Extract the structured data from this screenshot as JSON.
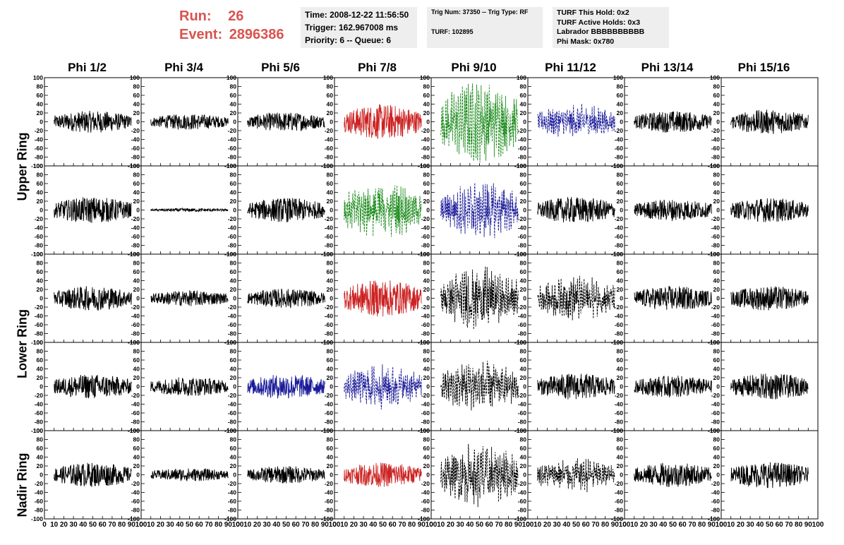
{
  "header": {
    "run_label": "Run:",
    "run_value": "26",
    "event_label": "Event:",
    "event_value": "2896386"
  },
  "info": {
    "time": "Time: 2008-12-22 11:56:50",
    "trigger": "Trigger: 162.967008 ms",
    "priority": "Priority: 6 -- Queue: 6",
    "trig_num": "Trig Num: 37350 -- Trig Type: RF",
    "turf": "TURF: 102895",
    "turf_hold": "TURF This Hold: 0x2",
    "turf_active": "TURF Active Holds: 0x3",
    "labrador": "Labrador BBBBBBBBBB",
    "phi_mask": "Phi Mask: 0x780"
  },
  "colors": {
    "header_red": "#d9534f",
    "info_bg": "#eeeeee",
    "black": "#000000",
    "red": "#cc2222",
    "green": "#1a8a1a",
    "blue": "#1a1a99"
  },
  "chart_data": {
    "type": "line",
    "columns": [
      "Phi 1/2",
      "Phi 3/4",
      "Phi 5/6",
      "Phi 7/8",
      "Phi 9/10",
      "Phi 11/12",
      "Phi 13/14",
      "Phi 15/16"
    ],
    "rows": [
      "Upper Ring",
      "Lower Ring",
      "Nadir Ring"
    ],
    "ylim": [
      -100,
      100
    ],
    "xlim": [
      0,
      100
    ],
    "y_ticks": [
      "100",
      "80",
      "60",
      "40",
      "20",
      "0",
      "-20",
      "-40",
      "-60",
      "-80",
      "-100"
    ],
    "x_ticks": [
      "0",
      "10",
      "20",
      "30",
      "40",
      "50",
      "60",
      "70",
      "80",
      "90",
      "100"
    ],
    "panels": [
      [
        {
          "color": "black",
          "style": "solid",
          "amp": 25
        },
        {
          "color": "black",
          "style": "solid",
          "amp": 18
        },
        {
          "color": "black",
          "style": "solid",
          "amp": 22
        },
        {
          "color": "red",
          "style": "solid",
          "amp": 40
        },
        {
          "color": "green",
          "style": "dashed",
          "amp": 70
        },
        {
          "color": "blue",
          "style": "dashed",
          "amp": 30
        },
        {
          "color": "black",
          "style": "solid",
          "amp": 25
        },
        {
          "color": "black",
          "style": "solid",
          "amp": 28
        }
      ],
      [
        {
          "color": "black",
          "style": "solid",
          "amp": 30
        },
        {
          "color": "black",
          "style": "solid",
          "amp": 4
        },
        {
          "color": "black",
          "style": "solid",
          "amp": 28
        },
        {
          "color": "green",
          "style": "dashed",
          "amp": 50
        },
        {
          "color": "blue",
          "style": "dashed",
          "amp": 50
        },
        {
          "color": "black",
          "style": "solid",
          "amp": 30
        },
        {
          "color": "black",
          "style": "solid",
          "amp": 25
        },
        {
          "color": "black",
          "style": "solid",
          "amp": 28
        }
      ],
      [
        {
          "color": "black",
          "style": "solid",
          "amp": 28
        },
        {
          "color": "black",
          "style": "solid",
          "amp": 18
        },
        {
          "color": "black",
          "style": "solid",
          "amp": 22
        },
        {
          "color": "red",
          "style": "solid",
          "amp": 42
        },
        {
          "color": "black",
          "style": "dashed",
          "amp": 55
        },
        {
          "color": "black",
          "style": "dashed",
          "amp": 38
        },
        {
          "color": "black",
          "style": "solid",
          "amp": 28
        },
        {
          "color": "black",
          "style": "solid",
          "amp": 28
        }
      ],
      [
        {
          "color": "black",
          "style": "solid",
          "amp": 28
        },
        {
          "color": "black",
          "style": "solid",
          "amp": 22
        },
        {
          "color": "blue",
          "style": "solid",
          "amp": 28
        },
        {
          "color": "blue",
          "style": "dashed",
          "amp": 38
        },
        {
          "color": "black",
          "style": "dashed",
          "amp": 45
        },
        {
          "color": "black",
          "style": "solid",
          "amp": 30
        },
        {
          "color": "black",
          "style": "solid",
          "amp": 25
        },
        {
          "color": "black",
          "style": "solid",
          "amp": 30
        }
      ],
      [
        {
          "color": "black",
          "style": "solid",
          "amp": 28
        },
        {
          "color": "black",
          "style": "solid",
          "amp": 15
        },
        {
          "color": "black",
          "style": "solid",
          "amp": 20
        },
        {
          "color": "red",
          "style": "solid",
          "amp": 28
        },
        {
          "color": "black",
          "style": "dashed",
          "amp": 55
        },
        {
          "color": "black",
          "style": "dashed",
          "amp": 30
        },
        {
          "color": "black",
          "style": "solid",
          "amp": 28
        },
        {
          "color": "black",
          "style": "solid",
          "amp": 30
        }
      ]
    ]
  }
}
